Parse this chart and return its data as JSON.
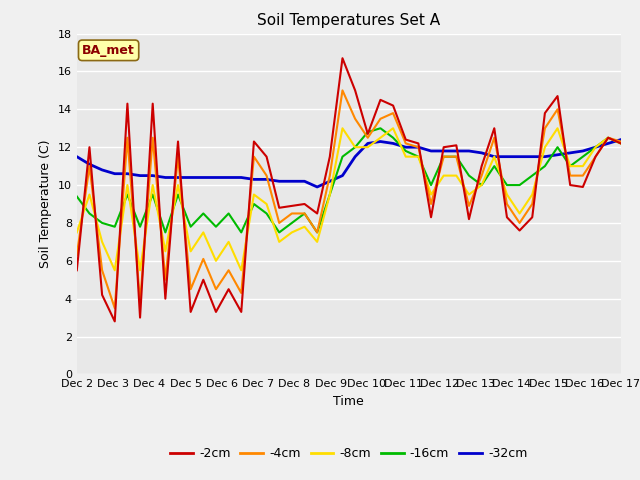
{
  "title": "Soil Temperatures Set A",
  "xlabel": "Time",
  "ylabel": "Soil Temperature (C)",
  "ylim": [
    0,
    18
  ],
  "annotation": "BA_met",
  "x_tick_labels": [
    "Dec 2",
    "Dec 3",
    "Dec 4",
    "Dec 5",
    "Dec 6",
    "Dec 7",
    "Dec 8",
    "Dec 9",
    "Dec 10",
    "Dec 11",
    "Dec 12",
    "Dec 13",
    "Dec 14",
    "Dec 15",
    "Dec 16",
    "Dec 17"
  ],
  "series": {
    "2cm": {
      "color": "#cc0000",
      "label": "-2cm",
      "data": [
        5.5,
        12.0,
        4.2,
        2.8,
        14.3,
        3.0,
        14.3,
        4.0,
        12.3,
        3.3,
        5.0,
        3.3,
        4.5,
        3.3,
        12.3,
        11.5,
        8.8,
        8.9,
        9.0,
        8.5,
        11.5,
        16.7,
        15.0,
        12.7,
        14.5,
        14.2,
        12.4,
        12.2,
        8.3,
        12.0,
        12.1,
        8.2,
        11.0,
        13.0,
        8.3,
        7.6,
        8.3,
        13.8,
        14.7,
        10.0,
        9.9,
        11.5,
        12.5,
        12.2
      ]
    },
    "4cm": {
      "color": "#ff8800",
      "label": "-4cm",
      "data": [
        6.3,
        11.0,
        5.5,
        3.5,
        12.5,
        3.8,
        12.5,
        5.0,
        11.5,
        4.5,
        6.1,
        4.5,
        5.5,
        4.3,
        11.5,
        10.5,
        8.0,
        8.5,
        8.5,
        7.5,
        10.5,
        15.0,
        13.5,
        12.5,
        13.5,
        13.8,
        12.2,
        12.0,
        9.0,
        11.5,
        11.5,
        8.9,
        10.5,
        12.5,
        9.0,
        8.0,
        9.0,
        13.0,
        14.0,
        10.5,
        10.5,
        11.5,
        12.5,
        12.3
      ]
    },
    "8cm": {
      "color": "#ffdd00",
      "label": "-8cm",
      "data": [
        7.5,
        9.5,
        7.0,
        5.5,
        10.0,
        5.5,
        10.0,
        6.5,
        10.0,
        6.5,
        7.5,
        6.0,
        7.0,
        5.5,
        9.5,
        9.0,
        7.0,
        7.5,
        7.8,
        7.0,
        9.5,
        13.0,
        12.0,
        12.0,
        12.5,
        13.0,
        11.5,
        11.5,
        9.5,
        10.5,
        10.5,
        9.5,
        10.0,
        11.5,
        9.5,
        8.5,
        9.5,
        12.0,
        13.0,
        11.0,
        11.0,
        12.0,
        12.5,
        12.2
      ]
    },
    "16cm": {
      "color": "#00bb00",
      "label": "-16cm",
      "data": [
        9.4,
        8.5,
        8.0,
        7.8,
        9.5,
        7.8,
        9.5,
        7.5,
        9.5,
        7.8,
        8.5,
        7.8,
        8.5,
        7.5,
        9.0,
        8.5,
        7.5,
        8.0,
        8.5,
        7.5,
        9.5,
        11.5,
        12.0,
        12.8,
        13.0,
        12.5,
        11.8,
        11.5,
        10.0,
        11.5,
        11.5,
        10.5,
        10.0,
        11.0,
        10.0,
        10.0,
        10.5,
        11.0,
        12.0,
        11.0,
        11.5,
        12.0,
        12.5,
        12.2
      ]
    },
    "32cm": {
      "color": "#0000cc",
      "label": "-32cm",
      "data": [
        11.5,
        11.1,
        10.8,
        10.6,
        10.6,
        10.5,
        10.5,
        10.4,
        10.4,
        10.4,
        10.4,
        10.4,
        10.4,
        10.4,
        10.3,
        10.3,
        10.2,
        10.2,
        10.2,
        9.9,
        10.2,
        10.5,
        11.5,
        12.2,
        12.3,
        12.2,
        12.0,
        12.0,
        11.8,
        11.8,
        11.8,
        11.8,
        11.7,
        11.5,
        11.5,
        11.5,
        11.5,
        11.5,
        11.6,
        11.7,
        11.8,
        12.0,
        12.2,
        12.4
      ]
    }
  },
  "fig_facecolor": "#f0f0f0",
  "plot_bg_color": "#e8e8e8",
  "title_fontsize": 11,
  "axis_label_fontsize": 9,
  "tick_fontsize": 8,
  "legend_fontsize": 9,
  "yticks": [
    0,
    2,
    4,
    6,
    8,
    10,
    12,
    14,
    16,
    18
  ]
}
